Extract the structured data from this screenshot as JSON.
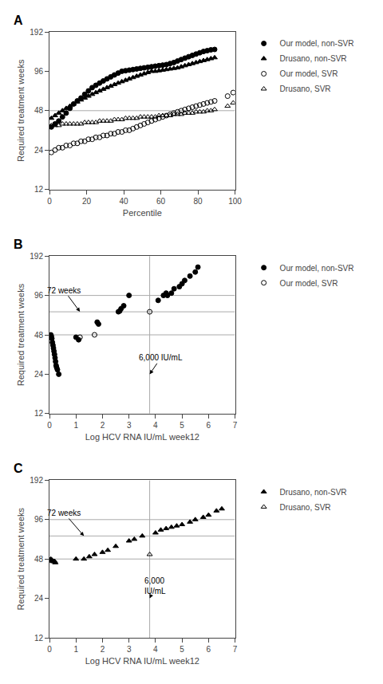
{
  "chart_data": [
    {
      "type": "scatter",
      "title": "A",
      "xlabel": "Percentile",
      "ylabel": "Required treatment weeks",
      "log": "y",
      "grid": false,
      "legend": "right",
      "xlim": [
        0,
        100
      ],
      "ylim": [
        12,
        192
      ],
      "xticks": [
        0,
        20,
        40,
        60,
        80,
        100
      ],
      "yticks": [
        12,
        24,
        48,
        96,
        192
      ],
      "hlines": [
        48
      ],
      "vlines": [],
      "series": [
        {
          "name": "Our model, non-SVR",
          "marker": "circle",
          "color": "#000000",
          "x": [
            1,
            3,
            5,
            7,
            9,
            11,
            13,
            15,
            17,
            19,
            21,
            23,
            25,
            27,
            29,
            31,
            33,
            35,
            37,
            39,
            41,
            43,
            45,
            47,
            49,
            51,
            53,
            55,
            57,
            59,
            61,
            63,
            65,
            67,
            69,
            71,
            73,
            75,
            77,
            79,
            81,
            83,
            85,
            87,
            89
          ],
          "values": [
            36,
            38,
            40,
            43,
            46,
            50,
            54,
            57,
            60,
            64,
            68,
            72,
            75,
            78,
            81,
            84,
            87,
            90,
            93,
            96,
            97,
            98,
            99,
            100,
            101,
            102,
            103,
            104,
            105,
            106,
            107,
            108,
            110,
            112,
            115,
            118,
            121,
            124,
            127,
            130,
            133,
            136,
            138,
            140,
            141
          ]
        },
        {
          "name": "Drusano, non-SVR",
          "marker": "triangle-up",
          "color": "#000000",
          "x": [
            1,
            3,
            5,
            7,
            9,
            11,
            13,
            15,
            17,
            19,
            21,
            23,
            25,
            27,
            29,
            31,
            33,
            35,
            37,
            39,
            41,
            43,
            45,
            47,
            49,
            51,
            53,
            55,
            57,
            59,
            61,
            63,
            65,
            67,
            69,
            71,
            73,
            75,
            77,
            79,
            81,
            83,
            85,
            87,
            89
          ],
          "values": [
            42,
            44,
            46,
            48,
            50,
            52,
            54,
            56,
            58,
            60,
            62,
            64,
            66,
            68,
            70,
            72,
            74,
            76,
            78,
            80,
            82,
            84,
            86,
            88,
            90,
            92,
            94,
            96,
            96,
            97,
            98,
            99,
            100,
            101,
            102,
            104,
            106,
            108,
            110,
            112,
            114,
            116,
            118,
            120,
            122
          ]
        },
        {
          "name": "Our model, SVR",
          "marker": "circle-open",
          "color": "#000000",
          "x": [
            1,
            3,
            5,
            7,
            9,
            11,
            13,
            15,
            17,
            19,
            21,
            23,
            25,
            27,
            29,
            31,
            33,
            35,
            37,
            39,
            41,
            43,
            45,
            47,
            49,
            51,
            53,
            55,
            57,
            59,
            61,
            63,
            65,
            67,
            69,
            71,
            73,
            75,
            77,
            79,
            81,
            83,
            85,
            87,
            89,
            96,
            99
          ],
          "values": [
            23,
            24,
            25,
            25,
            26,
            26,
            27,
            27,
            28,
            28,
            29,
            29,
            30,
            30,
            31,
            31,
            32,
            32,
            33,
            33,
            34,
            34,
            35,
            36,
            37,
            38,
            39,
            40,
            41,
            42,
            43,
            44,
            45,
            46,
            47,
            48,
            49,
            50,
            51,
            52,
            53,
            54,
            55,
            56,
            57,
            62,
            66
          ]
        },
        {
          "name": "Drusano, SVR",
          "marker": "triangle-up-open",
          "color": "#000000",
          "x": [
            1,
            3,
            5,
            7,
            9,
            11,
            13,
            15,
            17,
            19,
            21,
            23,
            25,
            27,
            29,
            31,
            33,
            35,
            37,
            39,
            41,
            43,
            45,
            47,
            49,
            51,
            53,
            55,
            57,
            59,
            61,
            63,
            65,
            67,
            69,
            71,
            73,
            75,
            77,
            79,
            81,
            83,
            85,
            87,
            89,
            96,
            99
          ],
          "values": [
            37,
            37,
            37,
            38,
            38,
            38,
            38,
            38,
            38,
            39,
            39,
            39,
            39,
            40,
            40,
            40,
            40,
            41,
            41,
            41,
            42,
            42,
            42,
            42,
            43,
            43,
            43,
            43,
            43,
            44,
            44,
            44,
            44,
            45,
            45,
            45,
            46,
            46,
            46,
            47,
            47,
            47,
            48,
            48,
            49,
            52,
            55
          ]
        }
      ],
      "annotations": []
    },
    {
      "type": "scatter",
      "title": "B",
      "xlabel": "Log HCV RNA IU/mL week12",
      "ylabel": "Required treatment weeks",
      "log": "y",
      "grid": false,
      "legend": "right",
      "xlim": [
        0,
        7
      ],
      "ylim": [
        12,
        192
      ],
      "xticks": [
        0,
        1,
        2,
        3,
        4,
        5,
        6,
        7
      ],
      "yticks": [
        12,
        24,
        48,
        96,
        192
      ],
      "hlines": [
        48,
        72,
        96
      ],
      "vlines": [
        3.78
      ],
      "series": [
        {
          "name": "Our model, non-SVR",
          "marker": "circle",
          "color": "#000000",
          "x": [
            0.05,
            0.07,
            0.09,
            0.11,
            0.13,
            0.15,
            0.17,
            0.19,
            0.21,
            0.23,
            0.25,
            0.27,
            0.3,
            0.35,
            1.0,
            1.1,
            1.8,
            1.85,
            2.6,
            2.65,
            2.7,
            2.8,
            3.0,
            4.1,
            4.3,
            4.4,
            4.45,
            4.6,
            4.7,
            4.9,
            5.0,
            5.1,
            5.3,
            5.5,
            5.6
          ],
          "values": [
            48,
            47,
            45,
            42,
            40,
            38,
            36,
            34,
            32,
            30,
            28,
            27,
            26,
            24,
            46,
            44,
            60,
            58,
            72,
            73,
            76,
            80,
            96,
            88,
            96,
            100,
            96,
            100,
            108,
            112,
            118,
            125,
            135,
            145,
            158
          ]
        },
        {
          "name": "Our model, SVR",
          "marker": "circle-open",
          "color": "#000000",
          "x": [
            1.15,
            1.7,
            3.78
          ],
          "values": [
            46,
            48,
            72
          ]
        }
      ],
      "annotations": [
        {
          "text": "72 weeks",
          "x": 1.15,
          "y": 72,
          "text_x": 0.55,
          "text_y": 105
        },
        {
          "text": "6,000 IU/mL",
          "x": 3.78,
          "y": 24,
          "text_x": 4.2,
          "text_y": 32
        }
      ]
    },
    {
      "type": "scatter",
      "title": "C",
      "xlabel": "Log HCV RNA IU/mL week12",
      "ylabel": "Required treatment weeks",
      "log": "y",
      "grid": false,
      "legend": "right",
      "xlim": [
        0,
        7
      ],
      "ylim": [
        12,
        192
      ],
      "xticks": [
        0,
        1,
        2,
        3,
        4,
        5,
        6,
        7
      ],
      "yticks": [
        12,
        24,
        48,
        96,
        192
      ],
      "hlines": [
        48,
        72,
        96
      ],
      "vlines": [
        3.78
      ],
      "series": [
        {
          "name": "Drusano, non-SVR",
          "marker": "triangle-up",
          "color": "#000000",
          "x": [
            0.05,
            0.08,
            0.1,
            0.12,
            0.15,
            0.18,
            0.2,
            0.22,
            1.0,
            1.3,
            1.5,
            1.7,
            2.0,
            2.2,
            2.5,
            3.0,
            3.2,
            3.5,
            4.0,
            4.2,
            4.4,
            4.6,
            4.8,
            5.0,
            5.3,
            5.5,
            5.8,
            6.0,
            6.3,
            6.5
          ],
          "values": [
            48,
            47,
            47,
            46,
            46,
            46,
            46,
            45,
            48,
            48,
            50,
            52,
            54,
            56,
            60,
            66,
            68,
            72,
            76,
            80,
            82,
            84,
            86,
            88,
            92,
            96,
            100,
            104,
            112,
            116
          ]
        },
        {
          "name": "Drusano, SVR",
          "marker": "triangle-up-open",
          "color": "#000000",
          "x": [
            3.78
          ],
          "values": [
            52
          ]
        }
      ],
      "annotations": [
        {
          "text": "72 weeks",
          "x": 1.3,
          "y": 72,
          "text_x": 0.55,
          "text_y": 108
        },
        {
          "text": "6,000\nIU/mL",
          "x": 3.78,
          "y": 24,
          "text_x": 4.0,
          "text_y": 30
        }
      ]
    }
  ]
}
